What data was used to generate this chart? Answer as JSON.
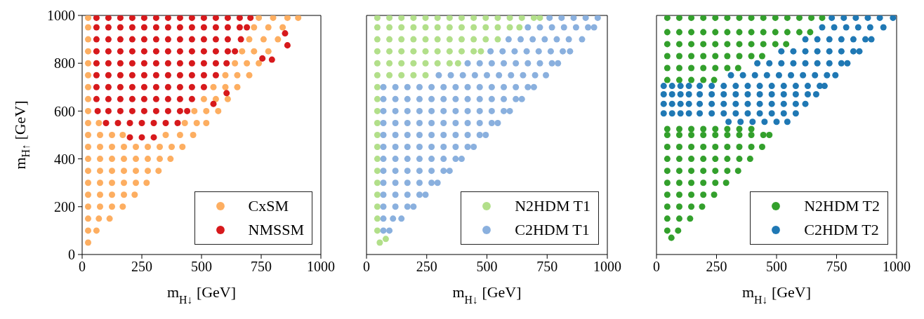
{
  "chart_data": [
    {
      "type": "scatter",
      "xlabel": "m$_{H↓}$ [GeV]",
      "ylabel": "m$_{H↑}$ [GeV]",
      "xlim": [
        0,
        1000
      ],
      "ylim": [
        0,
        1000
      ],
      "xticks": [
        0,
        250,
        500,
        750,
        1000
      ],
      "yticks": [
        0,
        200,
        400,
        600,
        800,
        1000
      ],
      "legend": "bottom right",
      "marker": "circle",
      "series": [
        {
          "name": "CxSM",
          "color": "#fdae61",
          "x": [
            25,
            25,
            60,
            25,
            70,
            115,
            25,
            75,
            125,
            170,
            25,
            75,
            125,
            175,
            220,
            25,
            75,
            125,
            175,
            225,
            270,
            25,
            75,
            125,
            175,
            225,
            275,
            320,
            25,
            75,
            125,
            175,
            225,
            275,
            325,
            370,
            25,
            75,
            125,
            175,
            225,
            275,
            325,
            375,
            420,
            25,
            75,
            125,
            170,
            350,
            410,
            465,
            25,
            70,
            430,
            480,
            520,
            25,
            470,
            520,
            570,
            25,
            510,
            560,
            610,
            25,
            550,
            600,
            650,
            25,
            600,
            650,
            700,
            25,
            640,
            690,
            740,
            25,
            670,
            720,
            780,
            25,
            700,
            760,
            820,
            25,
            720,
            780,
            840,
            25,
            740,
            800,
            860,
            905
          ],
          "values": [
            50,
            100,
            100,
            150,
            150,
            150,
            200,
            200,
            200,
            200,
            250,
            250,
            250,
            250,
            250,
            300,
            300,
            300,
            300,
            300,
            300,
            350,
            350,
            350,
            350,
            350,
            350,
            350,
            400,
            400,
            400,
            400,
            400,
            400,
            400,
            400,
            450,
            450,
            450,
            450,
            450,
            450,
            450,
            450,
            450,
            500,
            500,
            500,
            500,
            500,
            500,
            500,
            550,
            550,
            550,
            550,
            550,
            600,
            600,
            600,
            600,
            650,
            650,
            650,
            650,
            700,
            700,
            700,
            700,
            750,
            750,
            750,
            750,
            800,
            800,
            800,
            800,
            850,
            850,
            850,
            850,
            900,
            900,
            900,
            900,
            950,
            950,
            950,
            950,
            990,
            990,
            990,
            990,
            990
          ]
        },
        {
          "name": "NMSSM",
          "color": "#d7191c",
          "x": [
            200,
            250,
            300,
            100,
            150,
            200,
            250,
            300,
            350,
            400,
            65,
            110,
            160,
            210,
            260,
            310,
            360,
            410,
            440,
            60,
            110,
            160,
            210,
            260,
            310,
            360,
            410,
            460,
            60,
            110,
            160,
            210,
            260,
            310,
            360,
            410,
            460,
            510,
            60,
            110,
            160,
            210,
            260,
            310,
            360,
            410,
            460,
            510,
            560,
            60,
            110,
            160,
            210,
            260,
            310,
            360,
            410,
            460,
            510,
            560,
            605,
            60,
            110,
            160,
            210,
            260,
            310,
            360,
            410,
            460,
            510,
            560,
            610,
            640,
            60,
            110,
            160,
            210,
            260,
            310,
            360,
            410,
            460,
            510,
            560,
            610,
            665,
            60,
            110,
            160,
            210,
            260,
            310,
            360,
            410,
            460,
            510,
            560,
            610,
            660,
            690,
            60,
            110,
            160,
            210,
            260,
            310,
            360,
            410,
            460,
            510,
            560,
            610,
            660,
            705,
            550,
            605,
            755,
            795,
            860,
            850
          ],
          "values": [
            490,
            490,
            490,
            550,
            550,
            550,
            550,
            550,
            550,
            550,
            600,
            600,
            600,
            600,
            600,
            600,
            600,
            600,
            600,
            650,
            650,
            650,
            650,
            650,
            650,
            650,
            650,
            650,
            700,
            700,
            700,
            700,
            700,
            700,
            700,
            700,
            700,
            700,
            750,
            750,
            750,
            750,
            750,
            750,
            750,
            750,
            750,
            750,
            750,
            800,
            800,
            800,
            800,
            800,
            800,
            800,
            800,
            800,
            800,
            800,
            800,
            850,
            850,
            850,
            850,
            850,
            850,
            850,
            850,
            850,
            850,
            850,
            850,
            850,
            900,
            900,
            900,
            900,
            900,
            900,
            900,
            900,
            900,
            900,
            900,
            900,
            900,
            950,
            950,
            950,
            950,
            950,
            950,
            950,
            950,
            950,
            950,
            950,
            950,
            950,
            950,
            990,
            990,
            990,
            990,
            990,
            990,
            990,
            990,
            990,
            990,
            990,
            990,
            990,
            990,
            630,
            675,
            820,
            815,
            875,
            925
          ]
        }
      ]
    },
    {
      "type": "scatter",
      "xlabel": "m$_{H↓}$ [GeV]",
      "xlim": [
        0,
        1000
      ],
      "ylim": [
        0,
        1000
      ],
      "xticks": [
        0,
        250,
        500,
        750,
        1000
      ],
      "yticks": [
        0,
        200,
        400,
        600,
        800,
        1000
      ],
      "tick_labels": "x",
      "legend": "bottom right",
      "marker": "circle",
      "series": [
        {
          "name": "N2HDM T1",
          "color": "#b2df8a",
          "x": [
            55,
            80,
            45,
            45,
            45,
            45,
            45,
            45,
            45,
            45,
            45,
            45,
            45,
            45,
            45,
            45,
            95,
            145,
            195,
            245,
            45,
            95,
            145,
            195,
            245,
            295,
            345,
            380,
            45,
            95,
            145,
            195,
            245,
            295,
            345,
            395,
            445,
            475,
            45,
            95,
            145,
            195,
            245,
            295,
            345,
            395,
            445,
            495,
            545,
            45,
            95,
            145,
            195,
            245,
            295,
            345,
            395,
            445,
            495,
            545,
            595,
            635,
            45,
            95,
            145,
            195,
            245,
            295,
            345,
            395,
            445,
            495,
            545,
            595,
            645,
            695,
            720
          ],
          "values": [
            50,
            65,
            100,
            150,
            200,
            250,
            300,
            350,
            400,
            450,
            500,
            550,
            600,
            650,
            700,
            750,
            750,
            750,
            750,
            750,
            800,
            800,
            800,
            800,
            800,
            800,
            800,
            800,
            850,
            850,
            850,
            850,
            850,
            850,
            850,
            850,
            850,
            850,
            900,
            900,
            900,
            900,
            900,
            900,
            900,
            900,
            900,
            900,
            900,
            950,
            950,
            950,
            950,
            950,
            950,
            950,
            950,
            950,
            950,
            950,
            950,
            950,
            990,
            990,
            990,
            990,
            990,
            990,
            990,
            990,
            990,
            990,
            990,
            990,
            990,
            990,
            990
          ]
        },
        {
          "name": "C2HDM T1",
          "color": "#8ab0de",
          "x": [
            70,
            95,
            70,
            110,
            145,
            70,
            120,
            170,
            195,
            70,
            120,
            170,
            220,
            245,
            70,
            120,
            170,
            220,
            270,
            295,
            70,
            120,
            170,
            220,
            270,
            320,
            345,
            70,
            120,
            170,
            220,
            270,
            320,
            370,
            395,
            70,
            120,
            170,
            220,
            270,
            320,
            370,
            420,
            445,
            70,
            120,
            170,
            220,
            270,
            320,
            370,
            420,
            470,
            495,
            70,
            120,
            170,
            220,
            270,
            320,
            370,
            420,
            470,
            520,
            545,
            70,
            120,
            170,
            220,
            270,
            320,
            370,
            420,
            470,
            520,
            570,
            595,
            70,
            120,
            170,
            220,
            270,
            320,
            370,
            420,
            470,
            520,
            570,
            620,
            645,
            70,
            120,
            170,
            220,
            270,
            320,
            370,
            420,
            470,
            520,
            570,
            620,
            670,
            695,
            300,
            350,
            400,
            450,
            500,
            550,
            600,
            650,
            700,
            745,
            420,
            470,
            520,
            570,
            620,
            670,
            720,
            770,
            795,
            515,
            565,
            615,
            665,
            715,
            765,
            815,
            845,
            590,
            640,
            690,
            740,
            790,
            840,
            895,
            670,
            720,
            770,
            820,
            870,
            920,
            945,
            760,
            810,
            860,
            910,
            960
          ],
          "values": [
            100,
            100,
            150,
            150,
            150,
            200,
            200,
            200,
            200,
            250,
            250,
            250,
            250,
            250,
            300,
            300,
            300,
            300,
            300,
            300,
            350,
            350,
            350,
            350,
            350,
            350,
            350,
            400,
            400,
            400,
            400,
            400,
            400,
            400,
            400,
            450,
            450,
            450,
            450,
            450,
            450,
            450,
            450,
            450,
            500,
            500,
            500,
            500,
            500,
            500,
            500,
            500,
            500,
            500,
            550,
            550,
            550,
            550,
            550,
            550,
            550,
            550,
            550,
            550,
            550,
            600,
            600,
            600,
            600,
            600,
            600,
            600,
            600,
            600,
            600,
            600,
            600,
            650,
            650,
            650,
            650,
            650,
            650,
            650,
            650,
            650,
            650,
            650,
            650,
            650,
            700,
            700,
            700,
            700,
            700,
            700,
            700,
            700,
            700,
            700,
            700,
            700,
            700,
            700,
            750,
            750,
            750,
            750,
            750,
            750,
            750,
            750,
            750,
            750,
            800,
            800,
            800,
            800,
            800,
            800,
            800,
            800,
            800,
            850,
            850,
            850,
            850,
            850,
            850,
            850,
            850,
            900,
            900,
            900,
            900,
            900,
            900,
            900,
            950,
            950,
            950,
            950,
            950,
            950,
            950,
            990,
            990,
            990,
            990,
            990
          ]
        }
      ]
    },
    {
      "type": "scatter",
      "xlabel": "m$_{H↓}$ [GeV]",
      "xlim": [
        0,
        1000
      ],
      "ylim": [
        0,
        1000
      ],
      "xticks": [
        0,
        250,
        500,
        750,
        1000
      ],
      "yticks": [
        0,
        200,
        400,
        600,
        800,
        1000
      ],
      "tick_labels": "x",
      "legend": "bottom right",
      "marker": "circle",
      "series": [
        {
          "name": "N2HDM T2",
          "color": "#33a02c",
          "x": [
            62,
            45,
            90,
            45,
            95,
            140,
            45,
            95,
            145,
            190,
            45,
            95,
            145,
            195,
            240,
            45,
            95,
            145,
            195,
            245,
            290,
            45,
            95,
            145,
            195,
            245,
            295,
            340,
            45,
            95,
            145,
            195,
            245,
            295,
            345,
            390,
            45,
            95,
            145,
            195,
            245,
            295,
            345,
            395,
            440,
            45,
            95,
            145,
            195,
            245,
            295,
            345,
            395,
            445,
            470,
            45,
            95,
            145,
            195,
            245,
            295,
            345,
            395,
            45,
            95,
            145,
            195,
            240,
            45,
            95,
            145,
            195,
            245,
            295,
            340,
            45,
            95,
            145,
            195,
            245,
            295,
            345,
            395,
            440,
            45,
            95,
            145,
            195,
            245,
            295,
            345,
            395,
            445,
            495,
            540,
            45,
            95,
            145,
            195,
            245,
            295,
            345,
            395,
            445,
            495,
            545,
            595,
            640,
            45,
            95,
            145,
            195,
            245,
            295,
            345,
            395,
            445,
            495,
            545,
            595,
            645,
            690
          ],
          "values": [
            70,
            100,
            100,
            150,
            150,
            150,
            200,
            200,
            200,
            200,
            250,
            250,
            250,
            250,
            250,
            300,
            300,
            300,
            300,
            300,
            300,
            350,
            350,
            350,
            350,
            350,
            350,
            350,
            400,
            400,
            400,
            400,
            400,
            400,
            400,
            400,
            450,
            450,
            450,
            450,
            450,
            450,
            450,
            450,
            450,
            500,
            500,
            500,
            500,
            500,
            500,
            500,
            500,
            500,
            500,
            525,
            525,
            525,
            525,
            525,
            525,
            525,
            525,
            730,
            730,
            730,
            730,
            730,
            780,
            780,
            780,
            780,
            780,
            780,
            780,
            830,
            830,
            830,
            830,
            830,
            830,
            830,
            830,
            830,
            880,
            880,
            880,
            880,
            880,
            880,
            880,
            880,
            880,
            880,
            880,
            930,
            930,
            930,
            930,
            930,
            930,
            930,
            930,
            930,
            930,
            930,
            930,
            930,
            990,
            990,
            990,
            990,
            990,
            990,
            990,
            990,
            990,
            990,
            990,
            990,
            990,
            990
          ]
        },
        {
          "name": "C2HDM T2",
          "color": "#1f78b4",
          "x": [
            300,
            350,
            400,
            450,
            500,
            545,
            30,
            65,
            100,
            135,
            180,
            230,
            280,
            330,
            380,
            430,
            480,
            530,
            580,
            30,
            65,
            100,
            135,
            180,
            230,
            280,
            330,
            380,
            430,
            480,
            530,
            580,
            620,
            30,
            65,
            100,
            135,
            180,
            230,
            280,
            330,
            380,
            430,
            480,
            530,
            580,
            630,
            665,
            30,
            65,
            100,
            135,
            180,
            230,
            280,
            330,
            380,
            430,
            480,
            530,
            580,
            630,
            680,
            700,
            310,
            360,
            410,
            460,
            510,
            560,
            610,
            660,
            710,
            745,
            420,
            470,
            520,
            570,
            620,
            670,
            720,
            770,
            795,
            520,
            570,
            620,
            670,
            720,
            770,
            820,
            845,
            620,
            670,
            720,
            770,
            820,
            870,
            895,
            690,
            740,
            790,
            840,
            890,
            945,
            730,
            780,
            830,
            880,
            930,
            985
          ],
          "values": [
            555,
            555,
            555,
            555,
            555,
            555,
            590,
            590,
            590,
            590,
            590,
            590,
            590,
            590,
            590,
            590,
            590,
            590,
            590,
            630,
            630,
            630,
            630,
            630,
            630,
            630,
            630,
            630,
            630,
            630,
            630,
            630,
            630,
            670,
            670,
            670,
            670,
            670,
            670,
            670,
            670,
            670,
            670,
            670,
            670,
            670,
            670,
            670,
            705,
            705,
            705,
            705,
            705,
            705,
            705,
            705,
            705,
            705,
            705,
            705,
            705,
            705,
            705,
            705,
            750,
            750,
            750,
            750,
            750,
            750,
            750,
            750,
            750,
            750,
            800,
            800,
            800,
            800,
            800,
            800,
            800,
            800,
            800,
            850,
            850,
            850,
            850,
            850,
            850,
            850,
            850,
            900,
            900,
            900,
            900,
            900,
            900,
            900,
            950,
            950,
            950,
            950,
            950,
            950,
            990,
            990,
            990,
            990,
            990,
            990
          ]
        }
      ]
    }
  ]
}
